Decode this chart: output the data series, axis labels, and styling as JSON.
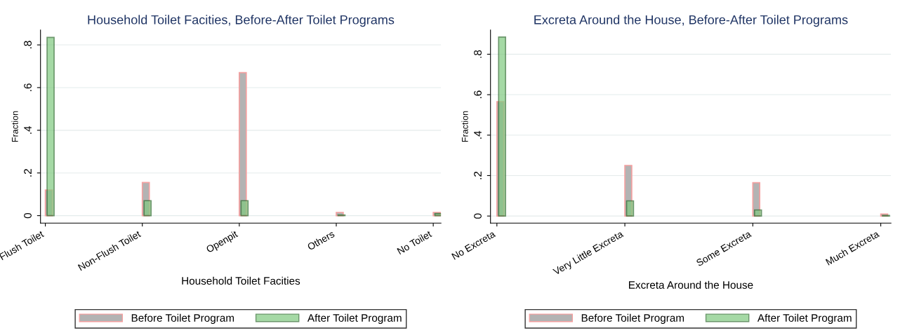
{
  "chart_data": [
    {
      "type": "bar",
      "title": "Household Toilet Facities, Before-After Toilet Programs",
      "xlabel": "Household Toilet Facities",
      "ylabel": "Fraction",
      "categories": [
        "Flush Toilet",
        "Non-Flush Toilet",
        "Openpit",
        "Others",
        "No Toilet"
      ],
      "series": [
        {
          "name": "Before Toilet Program",
          "color": "#b3b3b3",
          "values": [
            0.12,
            0.155,
            0.67,
            0.015,
            0.015
          ]
        },
        {
          "name": "After Toilet Program",
          "color": "#7fc97f",
          "values": [
            0.835,
            0.07,
            0.07,
            0.003,
            0.01
          ]
        }
      ],
      "ylim": [
        -0.035,
        0.87
      ],
      "yticks": [
        0,
        {
          "value": 0.2,
          "label": ".2"
        },
        {
          "value": 0.4,
          "label": ".4"
        },
        {
          "value": 0.6,
          "label": ".6"
        },
        {
          "value": 0.8,
          "label": ".8"
        }
      ],
      "grid": "y",
      "legend": "bottom"
    },
    {
      "type": "bar",
      "title": "Excreta Around the House, Before-After Toilet Programs",
      "xlabel": "Excreta Around the House",
      "ylabel": "Fraction",
      "categories": [
        "No Excreta",
        "Very Little Excreta",
        "Some Excreta",
        "Much Excreta"
      ],
      "series": [
        {
          "name": "Before Toilet Program",
          "color": "#b3b3b3",
          "values": [
            0.565,
            0.25,
            0.165,
            0.01
          ]
        },
        {
          "name": "After Toilet Program",
          "color": "#7fc97f",
          "values": [
            0.885,
            0.075,
            0.03,
            0.003
          ]
        }
      ],
      "ylim": [
        -0.035,
        0.92
      ],
      "yticks": [
        0,
        {
          "value": 0.2,
          "label": ".2"
        },
        {
          "value": 0.4,
          "label": ".4"
        },
        {
          "value": 0.6,
          "label": ".6"
        },
        {
          "value": 0.8,
          "label": ".8"
        }
      ],
      "grid": "y",
      "legend": "bottom"
    }
  ]
}
